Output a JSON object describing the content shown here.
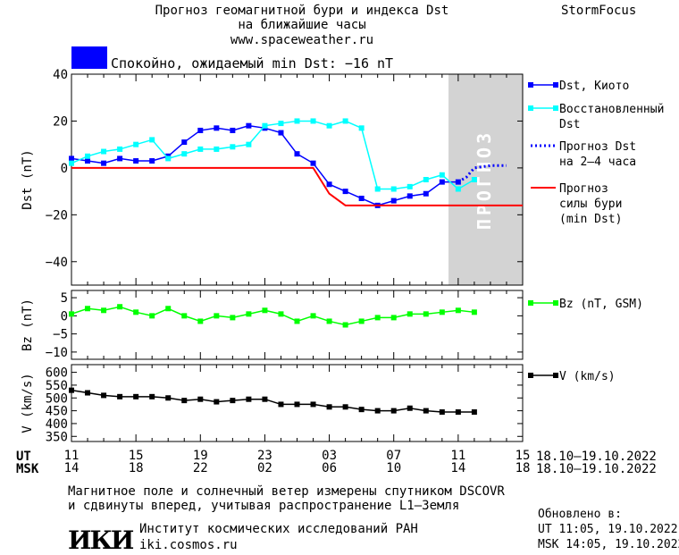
{
  "header": {
    "title_line1": "Прогноз геомагнитной бури и индекса Dst",
    "title_line2": "на ближайшие часы",
    "url": "www.spaceweather.ru",
    "brand": "StormFocus"
  },
  "status": {
    "color": "#0000ff",
    "text": "Спокойно, ожидаемый min Dst: −16 nT"
  },
  "forecast_band_label": "ПРОГНОЗ",
  "axis_rows": {
    "ut_label": "UT",
    "msk_label": "MSK",
    "ut_ticks": [
      "11",
      "15",
      "19",
      "23",
      "03",
      "07",
      "11",
      "15"
    ],
    "msk_ticks": [
      "14",
      "18",
      "22",
      "02",
      "06",
      "10",
      "14",
      "18"
    ],
    "ut_range": "18.10–19.10.2022",
    "msk_range": "18.10–19.10.2022"
  },
  "footer": {
    "note_line1": "Магнитное поле и солнечный ветер измерены спутником DSCOVR",
    "note_line2": "и сдвинуты вперед, учитывая распространение L1–Земля",
    "logo_text": "ИКИ",
    "institute": "Институт космических исследований РАН",
    "site": "iki.cosmos.ru",
    "updated_label": "Обновлено в:",
    "updated_ut": "UT  11:05, 19.10.2022",
    "updated_msk": "MSK 14:05, 19.10.2022"
  },
  "chart_data": [
    {
      "type": "line",
      "ylabel": "Dst (nT)",
      "ylim": [
        -50,
        40
      ],
      "yticks": [
        40,
        20,
        0,
        -20,
        -40
      ],
      "xlim": [
        11,
        39
      ],
      "forecast_band": [
        11,
        0
      ],
      "series": [
        {
          "name": "Dst, Киото",
          "color": "#0000ff",
          "marker": "square",
          "x": [
            11,
            12,
            13,
            14,
            15,
            16,
            17,
            18,
            19,
            20,
            21,
            22,
            23,
            24,
            25,
            26,
            27,
            28,
            29,
            30,
            31,
            32,
            33,
            34,
            35
          ],
          "y": [
            4,
            3,
            2,
            4,
            3,
            3,
            5,
            11,
            16,
            17,
            16,
            18,
            17,
            15,
            6,
            2,
            -7,
            -10,
            -13,
            -16,
            -14,
            -12,
            -11,
            -6,
            -6
          ]
        },
        {
          "name": "Восстановленный Dst",
          "color": "#00ffff",
          "marker": "square",
          "x": [
            11,
            12,
            13,
            14,
            15,
            16,
            17,
            18,
            19,
            20,
            21,
            22,
            23,
            24,
            25,
            26,
            27,
            28,
            29,
            30,
            31,
            32,
            33,
            34,
            35,
            36
          ],
          "y": [
            2,
            5,
            7,
            8,
            10,
            12,
            4,
            6,
            8,
            8,
            9,
            10,
            18,
            19,
            20,
            20,
            18,
            20,
            17,
            -9,
            -9,
            -8,
            -5,
            -3,
            -9,
            -5
          ]
        },
        {
          "name": "Прогноз Dst на 2–4 часа",
          "color": "#0000ff",
          "style": "dotted",
          "x": [
            35,
            35.5,
            36,
            37,
            38
          ],
          "y": [
            -6,
            -4,
            0,
            1,
            1
          ]
        },
        {
          "name": "Прогноз силы бури (min Dst)",
          "color": "#ff0000",
          "x": [
            11,
            26,
            27,
            28,
            39
          ],
          "y": [
            0,
            0,
            -11,
            -16,
            -16
          ]
        }
      ]
    },
    {
      "type": "line",
      "ylabel": "Bz (nT)",
      "ylim": [
        -12,
        7
      ],
      "yticks": [
        5,
        0,
        -5,
        -10
      ],
      "xlim": [
        11,
        39
      ],
      "series": [
        {
          "name": "Bz (nT, GSM)",
          "color": "#00ff00",
          "marker": "square",
          "x": [
            11,
            12,
            13,
            14,
            15,
            16,
            17,
            18,
            19,
            20,
            21,
            22,
            23,
            24,
            25,
            26,
            27,
            28,
            29,
            30,
            31,
            32,
            33,
            34,
            35,
            36
          ],
          "y": [
            0.5,
            2,
            1.5,
            2.5,
            1,
            0,
            2,
            0,
            -1.5,
            0,
            -0.5,
            0.5,
            1.5,
            0.5,
            -1.5,
            0,
            -1.5,
            -2.5,
            -1.5,
            -0.5,
            -0.5,
            0.5,
            0.5,
            1,
            1.5,
            1
          ]
        }
      ]
    },
    {
      "type": "line",
      "ylabel": "V (km/s)",
      "ylim": [
        330,
        630
      ],
      "yticks": [
        600,
        550,
        500,
        450,
        400,
        350
      ],
      "xlim": [
        11,
        39
      ],
      "series": [
        {
          "name": "V (km/s)",
          "color": "#000000",
          "marker": "square",
          "x": [
            11,
            12,
            13,
            14,
            15,
            16,
            17,
            18,
            19,
            20,
            21,
            22,
            23,
            24,
            25,
            26,
            27,
            28,
            29,
            30,
            31,
            32,
            33,
            34,
            35,
            36
          ],
          "y": [
            530,
            520,
            510,
            505,
            505,
            505,
            500,
            490,
            495,
            485,
            490,
            495,
            495,
            475,
            475,
            475,
            465,
            465,
            455,
            450,
            450,
            460,
            450,
            445,
            445,
            445
          ]
        }
      ]
    }
  ]
}
